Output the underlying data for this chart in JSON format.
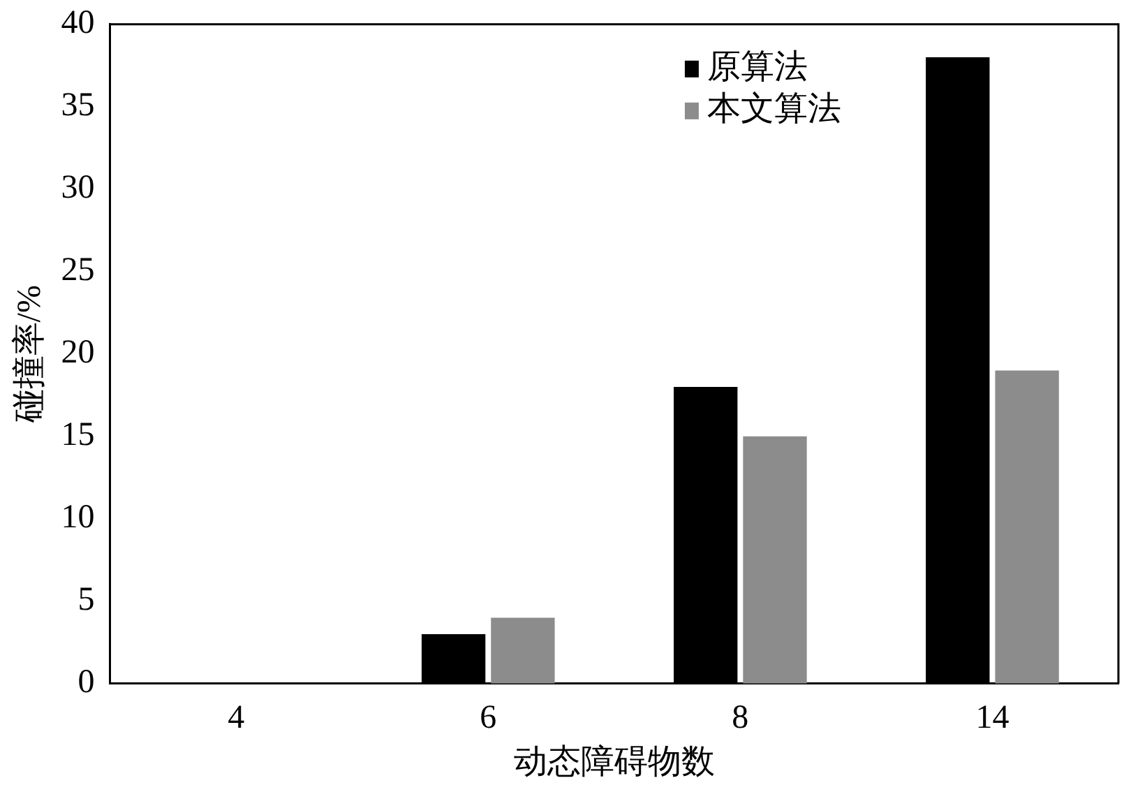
{
  "chart_data": {
    "type": "bar",
    "xlabel": "动态障碍物数",
    "ylabel": "碰撞率/%",
    "categories": [
      "4",
      "6",
      "8",
      "14"
    ],
    "series": [
      {
        "name": "原算法",
        "color": "#000000",
        "values": [
          0,
          3,
          18,
          38
        ]
      },
      {
        "name": "本文算法",
        "color": "#8c8c8c",
        "values": [
          0,
          4,
          15,
          19
        ]
      }
    ],
    "ylim": [
      0,
      40
    ],
    "yticks": [
      0,
      5,
      10,
      15,
      20,
      25,
      30,
      35,
      40
    ],
    "grid": false,
    "legend": "top right"
  }
}
